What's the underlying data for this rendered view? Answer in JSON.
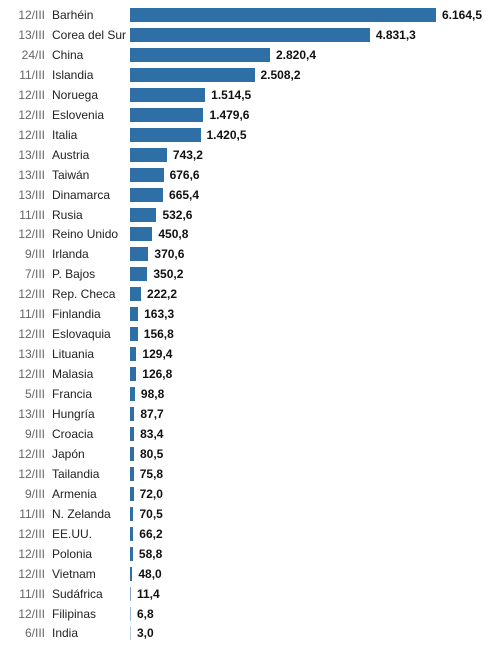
{
  "chart_data": {
    "type": "bar",
    "orientation": "horizontal",
    "title": "",
    "xlabel": "",
    "ylabel": "",
    "xlim": [
      0,
      6164.5
    ],
    "grid": false,
    "bar_color": "#2e6fa6",
    "rows": [
      {
        "date": "12/III",
        "country": "Barhéin",
        "value": 6164.5,
        "label": "6.164,5"
      },
      {
        "date": "13/III",
        "country": "Corea del Sur",
        "value": 4831.3,
        "label": "4.831,3"
      },
      {
        "date": "24/II",
        "country": "China",
        "value": 2820.4,
        "label": "2.820,4"
      },
      {
        "date": "11/III",
        "country": "Islandia",
        "value": 2508.2,
        "label": "2.508,2"
      },
      {
        "date": "12/III",
        "country": "Noruega",
        "value": 1514.5,
        "label": "1.514,5"
      },
      {
        "date": "12/III",
        "country": "Eslovenia",
        "value": 1479.6,
        "label": "1.479,6"
      },
      {
        "date": "12/III",
        "country": "Italia",
        "value": 1420.5,
        "label": "1.420,5"
      },
      {
        "date": "13/III",
        "country": "Austria",
        "value": 743.2,
        "label": "743,2"
      },
      {
        "date": "13/III",
        "country": "Taiwán",
        "value": 676.6,
        "label": "676,6"
      },
      {
        "date": "13/III",
        "country": "Dinamarca",
        "value": 665.4,
        "label": "665,4"
      },
      {
        "date": "11/III",
        "country": "Rusia",
        "value": 532.6,
        "label": "532,6"
      },
      {
        "date": "12/III",
        "country": "Reino Unido",
        "value": 450.8,
        "label": "450,8"
      },
      {
        "date": "9/III",
        "country": "Irlanda",
        "value": 370.6,
        "label": "370,6"
      },
      {
        "date": "7/III",
        "country": "P.  Bajos",
        "value": 350.2,
        "label": "350,2"
      },
      {
        "date": "12/III",
        "country": "Rep. Checa",
        "value": 222.2,
        "label": "222,2"
      },
      {
        "date": "11/III",
        "country": "Finlandia",
        "value": 163.3,
        "label": "163,3"
      },
      {
        "date": "12/III",
        "country": "Eslovaquia",
        "value": 156.8,
        "label": "156,8"
      },
      {
        "date": "13/III",
        "country": "Lituania",
        "value": 129.4,
        "label": "129,4"
      },
      {
        "date": "12/III",
        "country": "Malasia",
        "value": 126.8,
        "label": "126,8"
      },
      {
        "date": "5/III",
        "country": "Francia",
        "value": 98.8,
        "label": "98,8"
      },
      {
        "date": "13/III",
        "country": "Hungría",
        "value": 87.7,
        "label": "87,7"
      },
      {
        "date": "9/III",
        "country": "Croacia",
        "value": 83.4,
        "label": "83,4"
      },
      {
        "date": "12/III",
        "country": "Japón",
        "value": 80.5,
        "label": "80,5"
      },
      {
        "date": "12/III",
        "country": "Tailandia",
        "value": 75.8,
        "label": "75,8"
      },
      {
        "date": "9/III",
        "country": "Armenia",
        "value": 72.0,
        "label": "72,0"
      },
      {
        "date": "11/III",
        "country": "N. Zelanda",
        "value": 70.5,
        "label": "70,5"
      },
      {
        "date": "12/III",
        "country": "EE.UU.",
        "value": 66.2,
        "label": "66,2"
      },
      {
        "date": "12/III",
        "country": "Polonia",
        "value": 58.8,
        "label": "58,8"
      },
      {
        "date": "12/III",
        "country": "Vietnam",
        "value": 48.0,
        "label": "48,0"
      },
      {
        "date": "11/III",
        "country": "Sudáfrica",
        "value": 11.4,
        "label": "11,4"
      },
      {
        "date": "12/III",
        "country": "Filipinas",
        "value": 6.8,
        "label": "6,8"
      },
      {
        "date": "6/III",
        "country": "India",
        "value": 3.0,
        "label": "3,0"
      }
    ]
  }
}
